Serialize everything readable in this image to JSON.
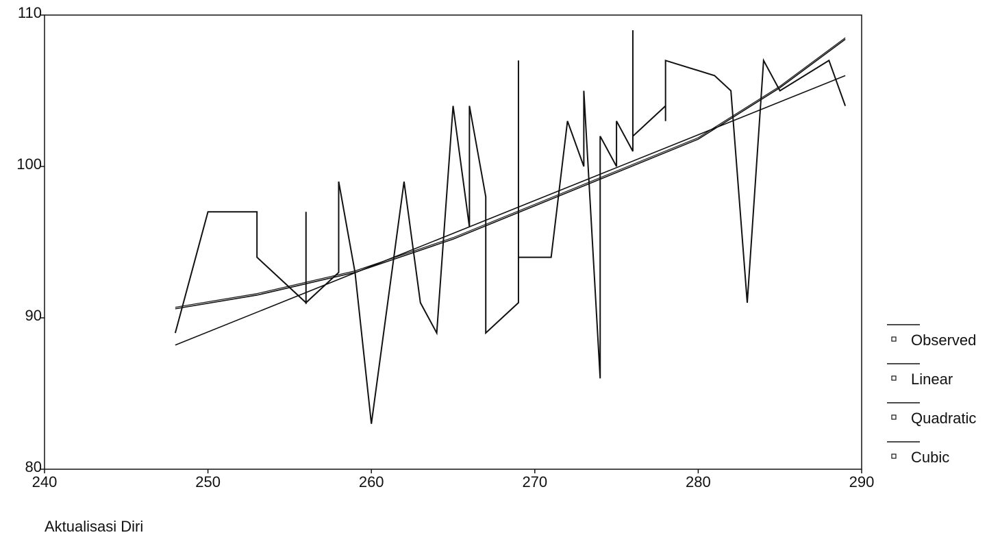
{
  "chart_data": {
    "type": "line",
    "x_label": "Aktualisasi Diri",
    "xlim": [
      240,
      290
    ],
    "xticks": [
      240,
      250,
      260,
      270,
      280,
      290
    ],
    "ylim": [
      80,
      110
    ],
    "yticks": [
      80,
      90,
      100,
      110
    ],
    "legend": "right",
    "series": [
      {
        "name": "Observed",
        "color": "#111111",
        "x": [
          248,
          250,
          253,
          253,
          256,
          256,
          256,
          258,
          258,
          259,
          260,
          262,
          263,
          264,
          265,
          266,
          266,
          267,
          267,
          269,
          269,
          269,
          271,
          272,
          273,
          273,
          274,
          274,
          275,
          275,
          276,
          276,
          276,
          278,
          278,
          278,
          281,
          282,
          283,
          284,
          285,
          288,
          289
        ],
        "values": [
          89,
          97,
          97,
          94,
          91,
          97,
          91,
          93,
          99,
          93,
          83,
          99,
          91,
          89,
          104,
          96,
          104,
          98,
          89,
          91,
          107,
          94,
          94,
          103,
          100,
          105,
          86,
          102,
          100,
          103,
          101,
          109,
          102,
          104,
          103,
          107,
          106,
          105,
          91,
          107,
          105,
          107,
          104
        ]
      },
      {
        "name": "Linear",
        "color": "#111111",
        "x": [
          248,
          289
        ],
        "values": [
          88.2,
          106.0
        ]
      },
      {
        "name": "Quadratic",
        "color": "#111111",
        "x": [
          248,
          253,
          259,
          265,
          270,
          275,
          280,
          285,
          289
        ],
        "values": [
          90.6,
          91.5,
          93.0,
          95.2,
          97.4,
          99.6,
          101.8,
          105.2,
          108.4
        ]
      },
      {
        "name": "Cubic",
        "color": "#111111",
        "x": [
          248,
          253,
          259,
          265,
          270,
          275,
          280,
          285,
          289
        ],
        "values": [
          90.7,
          91.6,
          93.1,
          95.3,
          97.5,
          99.7,
          101.9,
          105.3,
          108.5
        ]
      }
    ]
  }
}
